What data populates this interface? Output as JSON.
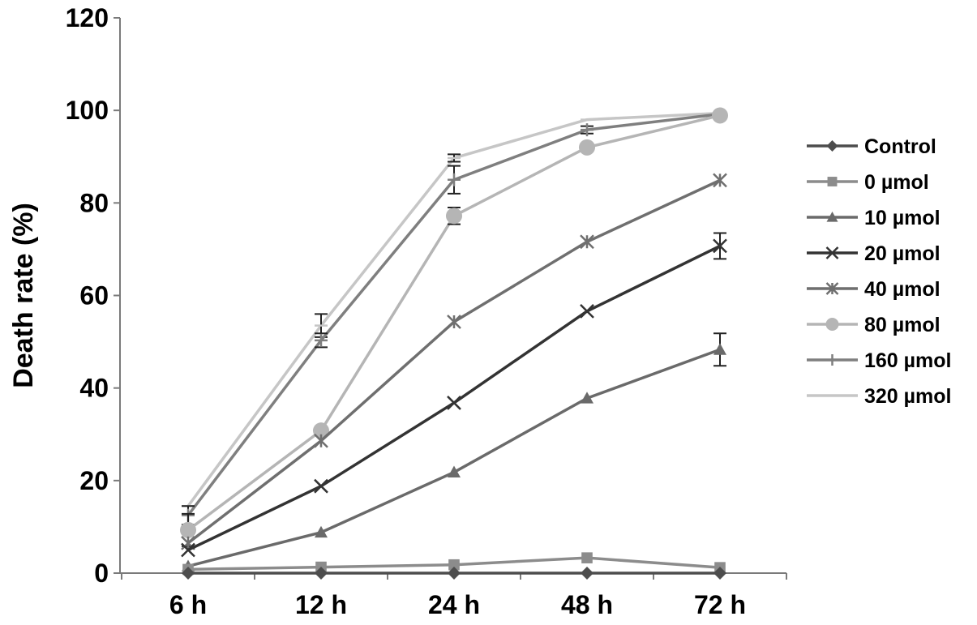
{
  "chart_data": {
    "type": "line",
    "title": "",
    "xlabel": "",
    "ylabel": "Death rate (%)",
    "categories": [
      "6 h",
      "12 h",
      "24 h",
      "48 h",
      "72 h"
    ],
    "ylim": [
      0,
      120
    ],
    "yticks": [
      0,
      20,
      40,
      60,
      80,
      100,
      120
    ],
    "grid": false,
    "legend_position": "right",
    "series": [
      {
        "name": "Control",
        "marker": "diamond",
        "color": "#4d4d4d",
        "values": [
          0,
          0,
          0,
          0,
          0
        ],
        "errors": [
          0,
          0,
          0,
          0,
          0
        ]
      },
      {
        "name": "0 µmol",
        "marker": "square",
        "color": "#8c8c8c",
        "values": [
          0.8,
          1.3,
          1.8,
          3.3,
          1.2
        ],
        "errors": [
          0,
          0,
          0,
          0,
          0
        ]
      },
      {
        "name": "10 µmol",
        "marker": "triangle",
        "color": "#6a6a6a",
        "values": [
          1.5,
          8.8,
          21.8,
          37.8,
          48.3
        ],
        "errors": [
          0,
          0,
          0,
          0,
          3.5
        ]
      },
      {
        "name": "20 µmol",
        "marker": "x",
        "color": "#333333",
        "values": [
          5,
          18.8,
          36.8,
          56.6,
          70.7
        ],
        "errors": [
          0,
          0,
          0,
          0,
          2.8
        ]
      },
      {
        "name": "40 µmol",
        "marker": "asterisk",
        "color": "#6f6f6f",
        "values": [
          6.5,
          28.6,
          54.3,
          71.6,
          84.9
        ],
        "errors": [
          0,
          0,
          0,
          0,
          0
        ]
      },
      {
        "name": "80 µmol",
        "marker": "circle",
        "color": "#b5b5b5",
        "values": [
          9.3,
          30.8,
          77.2,
          92,
          98.9
        ],
        "errors": [
          3.5,
          0,
          1.8,
          0,
          0
        ]
      },
      {
        "name": "160 µmol",
        "marker": "plus",
        "color": "#7f7f7f",
        "values": [
          12.5,
          50.3,
          85,
          95.8,
          99.2
        ],
        "errors": [
          2,
          1.5,
          3,
          0.8,
          0
        ]
      },
      {
        "name": "320 µmol",
        "marker": "dash",
        "color": "#c6c6c6",
        "values": [
          14.5,
          53.5,
          89.7,
          98,
          99.4
        ],
        "errors": [
          0,
          2.5,
          0.8,
          0,
          0
        ]
      }
    ]
  }
}
